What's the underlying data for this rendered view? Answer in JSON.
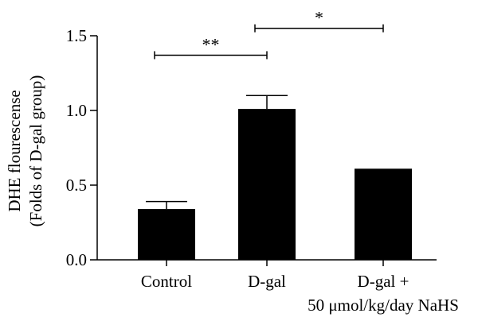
{
  "chart_data": {
    "type": "bar",
    "categories": [
      "Control",
      "D-gal",
      "D-gal +"
    ],
    "category_sublabels": [
      "",
      "",
      "50 μmol/kg/day NaHS"
    ],
    "values": [
      0.34,
      1.01,
      0.61
    ],
    "errors": [
      0.05,
      0.09,
      0
    ],
    "ylabel_lines": [
      "DHE flourescense",
      "(Folds of D-gal group)"
    ],
    "xlabel": "",
    "ylim": [
      0,
      1.5
    ],
    "yticks": [
      0.0,
      0.5,
      1.0,
      1.5
    ],
    "ytick_labels": [
      "0.0",
      "0.5",
      "1.0",
      "1.5"
    ],
    "grid": false,
    "bar_color": "#000000",
    "significance": [
      {
        "from": 0,
        "to": 1,
        "label": "**",
        "level": 1.37
      },
      {
        "from": 1,
        "to": 2,
        "label": "*",
        "level": 1.55
      }
    ]
  }
}
